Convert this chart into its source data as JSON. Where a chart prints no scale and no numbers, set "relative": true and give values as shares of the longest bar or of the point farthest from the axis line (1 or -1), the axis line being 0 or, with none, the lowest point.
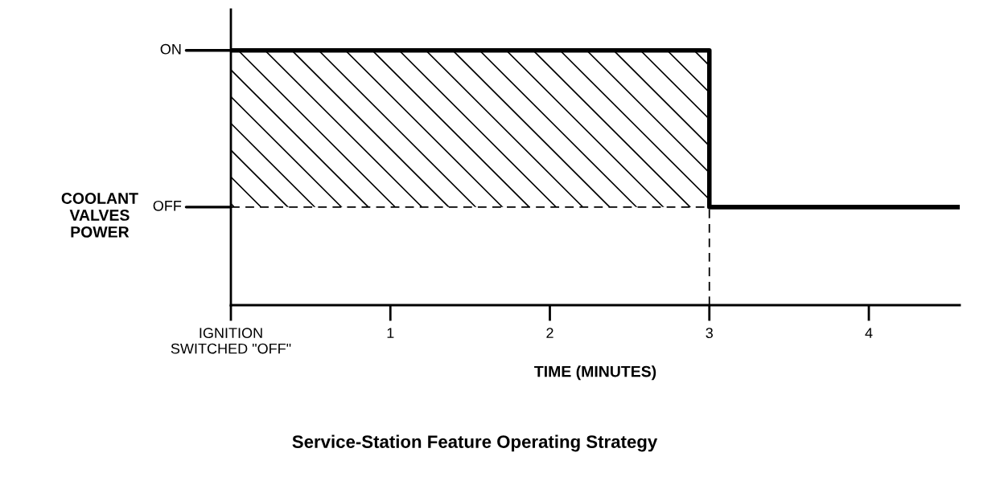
{
  "chart_data": {
    "type": "area",
    "relative": true,
    "title": "Service-Station Feature Operating Strategy",
    "xlabel": "TIME (MINUTES)",
    "ylabel": "COOLANT\nVALVES\nPOWER",
    "series": [
      {
        "color": "#000000",
        "x": [
          0,
          3,
          3,
          4.57
        ],
        "values": [
          1,
          1,
          0.385,
          0.385
        ]
      }
    ],
    "xlim": [
      0,
      4.57
    ],
    "xticks": [
      {
        "value": 0,
        "label": "IGNITION\nSWITCHED \"OFF\""
      },
      1,
      2,
      3,
      4
    ],
    "annotations": [
      {
        "text": "OFF",
        "x": 0,
        "y": 0.385
      },
      {
        "text": "ON",
        "x": 0,
        "y": 1
      }
    ],
    "ref_lines": [
      {
        "axis": "y",
        "value": 0.385,
        "color": "#000000",
        "line_style": "dashed"
      },
      {
        "axis": "x",
        "value": 3,
        "color": "#000000",
        "line_style": "dashed"
      }
    ],
    "grid": false,
    "legend": false
  }
}
